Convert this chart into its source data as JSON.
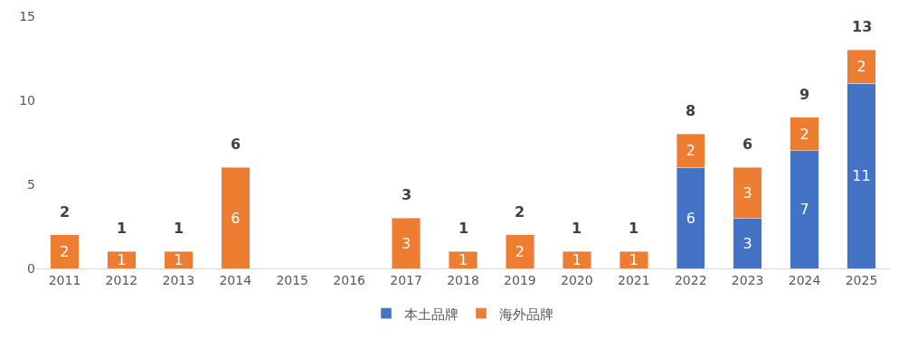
{
  "chart_data": {
    "type": "bar",
    "stacked": true,
    "categories": [
      "2011",
      "2012",
      "2013",
      "2014",
      "2015",
      "2016",
      "2017",
      "2018",
      "2019",
      "2020",
      "2021",
      "2022",
      "2023",
      "2024",
      "2025"
    ],
    "series": [
      {
        "name": "本土品牌",
        "color": "#4472c4",
        "values": [
          null,
          null,
          null,
          null,
          null,
          null,
          null,
          null,
          null,
          null,
          null,
          6,
          3,
          7,
          11
        ],
        "value_labels": [
          null,
          null,
          null,
          null,
          null,
          null,
          null,
          null,
          null,
          null,
          null,
          "6",
          "3",
          "7",
          "11"
        ]
      },
      {
        "name": "海外品牌",
        "color": "#ed7d31",
        "values": [
          2,
          1,
          1,
          6,
          null,
          null,
          3,
          1,
          2,
          1,
          1,
          2,
          3,
          2,
          2
        ],
        "value_labels": [
          "2",
          "1",
          "1",
          "6",
          null,
          null,
          "3",
          "1",
          "2",
          "1",
          "1",
          "2",
          "3",
          "2",
          "2"
        ]
      }
    ],
    "totals": [
      "2",
      "1",
      "1",
      "6",
      null,
      null,
      "3",
      "1",
      "2",
      "1",
      "1",
      "8",
      "6",
      "9",
      "13"
    ],
    "ylim": [
      0,
      15
    ],
    "yticks": [
      0,
      5,
      10,
      15
    ],
    "legend": "bottom"
  }
}
